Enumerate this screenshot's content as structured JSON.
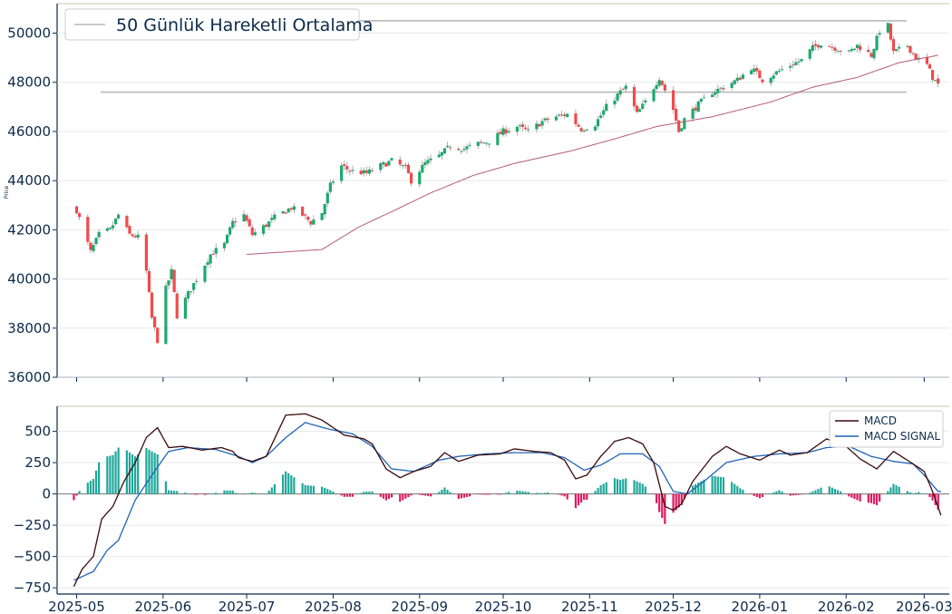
{
  "colors": {
    "up": "#1ea86e",
    "down": "#f04a4c",
    "wick": "#9a9a9a",
    "ma": "#b45c77",
    "level": "#b9b9b9",
    "macd": "#3a0a0a",
    "signal": "#1f63b7",
    "hist_pos": "#1ea79a",
    "hist_neg": "#e0185f",
    "axis": "#0b2a4a",
    "grid": "#e8e8e8",
    "topline": "#c9c6a8"
  },
  "chart_data": [
    {
      "type": "candlestick",
      "ylabel": "Price",
      "ylim": [
        36000,
        51200
      ],
      "yticks": [
        36000,
        38000,
        40000,
        42000,
        44000,
        46000,
        48000,
        50000
      ],
      "xrange": [
        "2025-04-24",
        "2026-03-10"
      ],
      "xtick_labels": [
        "2025-05",
        "2025-06",
        "2025-07",
        "2025-08",
        "2025-09",
        "2025-10",
        "2025-11",
        "2025-12",
        "2026-01",
        "2026-02",
        "2026-03"
      ],
      "xtick_dates": [
        "2025-05-01",
        "2025-06-01",
        "2025-07-01",
        "2025-08-01",
        "2025-09-01",
        "2025-10-01",
        "2025-11-01",
        "2025-12-01",
        "2026-01-01",
        "2026-02-01",
        "2026-03-01"
      ],
      "legend": [
        "50 Günlük Hareketli Ortalama"
      ],
      "horizontal_lines": [
        50500,
        47600
      ],
      "close_anchors": [
        [
          "2025-05-01",
          42800
        ],
        [
          "2025-05-06",
          41100
        ],
        [
          "2025-05-09",
          41800
        ],
        [
          "2025-05-13",
          42000
        ],
        [
          "2025-05-16",
          42600
        ],
        [
          "2025-05-20",
          41800
        ],
        [
          "2025-05-23",
          41700
        ],
        [
          "2025-05-26",
          40300
        ],
        [
          "2025-05-28",
          38400
        ],
        [
          "2025-05-30",
          37500
        ],
        [
          "2025-06-02",
          39600
        ],
        [
          "2025-06-04",
          40300
        ],
        [
          "2025-06-06",
          38500
        ],
        [
          "2025-06-10",
          39400
        ],
        [
          "2025-06-13",
          40000
        ],
        [
          "2025-06-18",
          41000
        ],
        [
          "2025-06-23",
          41400
        ],
        [
          "2025-06-26",
          42300
        ],
        [
          "2025-06-30",
          42600
        ],
        [
          "2025-07-03",
          41800
        ],
        [
          "2025-07-08",
          42200
        ],
        [
          "2025-07-11",
          42500
        ],
        [
          "2025-07-17",
          42900
        ],
        [
          "2025-07-21",
          42600
        ],
        [
          "2025-07-24",
          42300
        ],
        [
          "2025-07-28",
          42700
        ],
        [
          "2025-07-31",
          43800
        ],
        [
          "2025-08-04",
          44600
        ],
        [
          "2025-08-07",
          44400
        ],
        [
          "2025-08-13",
          44300
        ],
        [
          "2025-08-18",
          44600
        ],
        [
          "2025-08-22",
          44800
        ],
        [
          "2025-08-27",
          44500
        ],
        [
          "2025-08-29",
          44000
        ],
        [
          "2025-09-03",
          44700
        ],
        [
          "2025-09-08",
          45000
        ],
        [
          "2025-09-12",
          45400
        ],
        [
          "2025-09-17",
          45300
        ],
        [
          "2025-09-22",
          45500
        ],
        [
          "2025-09-26",
          45600
        ],
        [
          "2025-10-01",
          46000
        ],
        [
          "2025-10-06",
          46200
        ],
        [
          "2025-10-10",
          46000
        ],
        [
          "2025-10-15",
          46400
        ],
        [
          "2025-10-20",
          46600
        ],
        [
          "2025-10-24",
          46700
        ],
        [
          "2025-10-29",
          46100
        ],
        [
          "2025-11-03",
          46300
        ],
        [
          "2025-11-07",
          47000
        ],
        [
          "2025-11-12",
          47600
        ],
        [
          "2025-11-14",
          47800
        ],
        [
          "2025-11-18",
          46700
        ],
        [
          "2025-11-21",
          47200
        ],
        [
          "2025-11-26",
          48200
        ],
        [
          "2025-12-01",
          46900
        ],
        [
          "2025-12-03",
          46000
        ],
        [
          "2025-12-05",
          46500
        ],
        [
          "2025-12-10",
          47100
        ],
        [
          "2025-12-15",
          47600
        ],
        [
          "2025-12-19",
          47800
        ],
        [
          "2025-12-24",
          48100
        ],
        [
          "2025-12-29",
          48600
        ],
        [
          "2026-01-02",
          48100
        ],
        [
          "2026-01-07",
          48400
        ],
        [
          "2026-01-12",
          48700
        ],
        [
          "2026-01-16",
          48900
        ],
        [
          "2026-01-20",
          49400
        ],
        [
          "2026-01-23",
          49600
        ],
        [
          "2026-01-28",
          49400
        ],
        [
          "2026-02-02",
          49200
        ],
        [
          "2026-02-05",
          49500
        ],
        [
          "2026-02-10",
          49100
        ],
        [
          "2026-02-13",
          50100
        ],
        [
          "2026-02-16",
          50300
        ],
        [
          "2026-02-18",
          49200
        ],
        [
          "2026-02-23",
          49500
        ],
        [
          "2026-02-26",
          49000
        ],
        [
          "2026-03-02",
          48700
        ],
        [
          "2026-03-04",
          48200
        ],
        [
          "2026-03-06",
          47900
        ]
      ],
      "ma_anchors": [
        [
          "2025-07-01",
          41000
        ],
        [
          "2025-07-15",
          41100
        ],
        [
          "2025-07-28",
          41200
        ],
        [
          "2025-08-10",
          42100
        ],
        [
          "2025-08-25",
          42900
        ],
        [
          "2025-09-05",
          43500
        ],
        [
          "2025-09-20",
          44200
        ],
        [
          "2025-10-05",
          44700
        ],
        [
          "2025-10-25",
          45200
        ],
        [
          "2025-11-10",
          45700
        ],
        [
          "2025-11-25",
          46200
        ],
        [
          "2025-12-15",
          46600
        ],
        [
          "2026-01-05",
          47200
        ],
        [
          "2026-01-20",
          47800
        ],
        [
          "2026-02-05",
          48200
        ],
        [
          "2026-02-20",
          48800
        ],
        [
          "2026-03-06",
          49100
        ]
      ]
    },
    {
      "type": "line",
      "ylim": [
        -800,
        700
      ],
      "yticks": [
        -750,
        -500,
        -250,
        0,
        250,
        500
      ],
      "xtick_labels": [
        "2025-05",
        "2025-06",
        "2025-07",
        "2025-08",
        "2025-09",
        "2025-10",
        "2025-11",
        "2025-12",
        "2026-01",
        "2026-02",
        "2026-03"
      ],
      "legend": [
        "MACD",
        "MACD SIGNAL"
      ],
      "legend_position": "upper right",
      "macd_anchors": [
        [
          "2025-04-30",
          -740
        ],
        [
          "2025-05-03",
          -600
        ],
        [
          "2025-05-07",
          -500
        ],
        [
          "2025-05-10",
          -200
        ],
        [
          "2025-05-14",
          -100
        ],
        [
          "2025-05-18",
          100
        ],
        [
          "2025-05-22",
          250
        ],
        [
          "2025-05-26",
          450
        ],
        [
          "2025-05-30",
          530
        ],
        [
          "2025-06-03",
          370
        ],
        [
          "2025-06-08",
          380
        ],
        [
          "2025-06-15",
          350
        ],
        [
          "2025-06-22",
          370
        ],
        [
          "2025-06-26",
          340
        ],
        [
          "2025-06-28",
          290
        ],
        [
          "2025-07-03",
          260
        ],
        [
          "2025-07-08",
          300
        ],
        [
          "2025-07-15",
          630
        ],
        [
          "2025-07-22",
          640
        ],
        [
          "2025-07-28",
          590
        ],
        [
          "2025-08-05",
          470
        ],
        [
          "2025-08-12",
          440
        ],
        [
          "2025-08-15",
          400
        ],
        [
          "2025-08-20",
          200
        ],
        [
          "2025-08-25",
          130
        ],
        [
          "2025-08-30",
          180
        ],
        [
          "2025-09-05",
          220
        ],
        [
          "2025-09-10",
          330
        ],
        [
          "2025-09-15",
          260
        ],
        [
          "2025-09-22",
          310
        ],
        [
          "2025-09-30",
          320
        ],
        [
          "2025-10-05",
          360
        ],
        [
          "2025-10-12",
          340
        ],
        [
          "2025-10-18",
          330
        ],
        [
          "2025-10-23",
          270
        ],
        [
          "2025-10-27",
          120
        ],
        [
          "2025-10-31",
          150
        ],
        [
          "2025-11-05",
          300
        ],
        [
          "2025-11-10",
          420
        ],
        [
          "2025-11-15",
          450
        ],
        [
          "2025-11-20",
          400
        ],
        [
          "2025-11-24",
          250
        ],
        [
          "2025-11-28",
          -100
        ],
        [
          "2025-12-01",
          -130
        ],
        [
          "2025-12-04",
          -80
        ],
        [
          "2025-12-08",
          100
        ],
        [
          "2025-12-15",
          300
        ],
        [
          "2025-12-20",
          380
        ],
        [
          "2025-12-25",
          320
        ],
        [
          "2026-01-01",
          270
        ],
        [
          "2026-01-08",
          350
        ],
        [
          "2026-01-12",
          310
        ],
        [
          "2026-01-18",
          330
        ],
        [
          "2026-01-25",
          440
        ],
        [
          "2026-02-01",
          380
        ],
        [
          "2026-02-06",
          280
        ],
        [
          "2026-02-12",
          200
        ],
        [
          "2026-02-18",
          340
        ],
        [
          "2026-02-25",
          240
        ],
        [
          "2026-03-01",
          180
        ],
        [
          "2026-03-04",
          20
        ],
        [
          "2026-03-07",
          -170
        ]
      ],
      "signal_anchors": [
        [
          "2025-04-30",
          -690
        ],
        [
          "2025-05-07",
          -620
        ],
        [
          "2025-05-12",
          -450
        ],
        [
          "2025-05-16",
          -370
        ],
        [
          "2025-05-22",
          -50
        ],
        [
          "2025-05-28",
          150
        ],
        [
          "2025-06-03",
          340
        ],
        [
          "2025-06-10",
          370
        ],
        [
          "2025-06-20",
          355
        ],
        [
          "2025-06-28",
          300
        ],
        [
          "2025-07-03",
          250
        ],
        [
          "2025-07-08",
          300
        ],
        [
          "2025-07-15",
          450
        ],
        [
          "2025-07-22",
          570
        ],
        [
          "2025-07-30",
          520
        ],
        [
          "2025-08-08",
          480
        ],
        [
          "2025-08-15",
          380
        ],
        [
          "2025-08-22",
          200
        ],
        [
          "2025-08-30",
          180
        ],
        [
          "2025-09-08",
          270
        ],
        [
          "2025-09-15",
          300
        ],
        [
          "2025-09-25",
          320
        ],
        [
          "2025-10-05",
          330
        ],
        [
          "2025-10-15",
          330
        ],
        [
          "2025-10-23",
          290
        ],
        [
          "2025-10-30",
          190
        ],
        [
          "2025-11-05",
          230
        ],
        [
          "2025-11-12",
          320
        ],
        [
          "2025-11-20",
          320
        ],
        [
          "2025-11-26",
          220
        ],
        [
          "2025-12-01",
          20
        ],
        [
          "2025-12-06",
          0
        ],
        [
          "2025-12-12",
          100
        ],
        [
          "2025-12-20",
          250
        ],
        [
          "2025-12-30",
          300
        ],
        [
          "2026-01-08",
          320
        ],
        [
          "2026-01-18",
          330
        ],
        [
          "2026-01-25",
          370
        ],
        [
          "2026-02-02",
          380
        ],
        [
          "2026-02-10",
          300
        ],
        [
          "2026-02-18",
          260
        ],
        [
          "2026-02-25",
          240
        ],
        [
          "2026-03-01",
          150
        ],
        [
          "2026-03-06",
          20
        ]
      ]
    }
  ]
}
